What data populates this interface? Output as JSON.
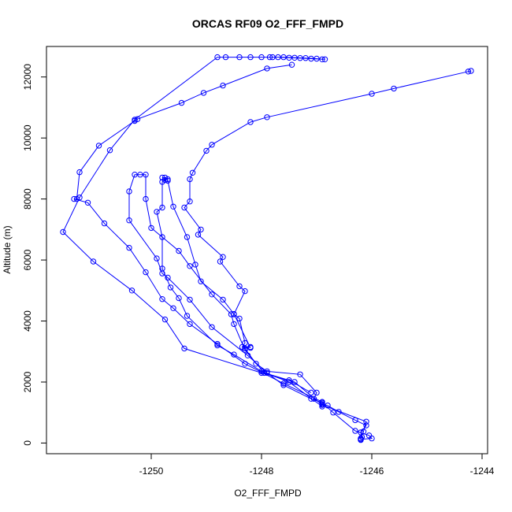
{
  "chart_data": {
    "type": "scatter",
    "title": "ORCAS RF09 O2_FFF_FMPD",
    "xlabel": "O2_FFF_FMPD",
    "ylabel": "Altitude (m)",
    "xlim": [
      -1251.9,
      -1243.9
    ],
    "ylim": [
      -350,
      13000
    ],
    "xticks": [
      -1250,
      -1248,
      -1246,
      -1244
    ],
    "yticks": [
      0,
      2000,
      4000,
      6000,
      8000,
      10000,
      12000
    ],
    "grid": false,
    "marker": "open-circle",
    "connected": true,
    "series_color": "#0000ff",
    "series": [
      {
        "points": [
          [
            -1244.2,
            12200
          ],
          [
            -1244.25,
            12180
          ],
          [
            -1245.6,
            11620
          ],
          [
            -1246.0,
            11450
          ],
          [
            -1247.9,
            10680
          ],
          [
            -1248.2,
            10520
          ],
          [
            -1248.9,
            9780
          ],
          [
            -1249.0,
            9580
          ],
          [
            -1249.25,
            8860
          ],
          [
            -1249.3,
            8650
          ],
          [
            -1249.3,
            7920
          ],
          [
            -1249.4,
            7720
          ],
          [
            -1249.1,
            7000
          ],
          [
            -1249.15,
            6830
          ],
          [
            -1248.7,
            6100
          ],
          [
            -1248.75,
            5950
          ],
          [
            -1248.4,
            5140
          ],
          [
            -1248.3,
            4980
          ],
          [
            -1248.5,
            4220
          ],
          [
            -1248.4,
            4080
          ],
          [
            -1248.3,
            3280
          ],
          [
            -1248.35,
            3150
          ],
          [
            -1248.2,
            3150
          ],
          [
            -1248.3,
            3100
          ],
          [
            -1248.1,
            2600
          ],
          [
            -1247.9,
            2350
          ],
          [
            -1247.3,
            2250
          ],
          [
            -1247.0,
            1650
          ],
          [
            -1247.05,
            1450
          ],
          [
            -1246.9,
            1280
          ],
          [
            -1246.8,
            1230
          ],
          [
            -1246.6,
            1020
          ],
          [
            -1246.3,
            750
          ],
          [
            -1246.1,
            580
          ],
          [
            -1246.2,
            350
          ],
          [
            -1246.18,
            200
          ],
          [
            -1246.2,
            150
          ],
          [
            -1246.2,
            100
          ]
        ]
      },
      {
        "points": [
          [
            -1246.2,
            120
          ],
          [
            -1246.0,
            150
          ],
          [
            -1246.05,
            250
          ],
          [
            -1246.3,
            400
          ],
          [
            -1246.7,
            1000
          ],
          [
            -1246.9,
            1320
          ],
          [
            -1247.1,
            1450
          ],
          [
            -1247.6,
            1900
          ],
          [
            -1247.9,
            2300
          ],
          [
            -1248.25,
            2870
          ],
          [
            -1248.9,
            3800
          ],
          [
            -1249.3,
            4700
          ],
          [
            -1249.7,
            5420
          ],
          [
            -1249.8,
            5560
          ],
          [
            -1249.9,
            6050
          ],
          [
            -1250.4,
            7300
          ],
          [
            -1250.4,
            8250
          ],
          [
            -1250.3,
            8800
          ],
          [
            -1250.2,
            8800
          ],
          [
            -1250.1,
            8800
          ],
          [
            -1250.1,
            8000
          ],
          [
            -1250.0,
            7050
          ],
          [
            -1249.5,
            6300
          ],
          [
            -1249.3,
            5800
          ],
          [
            -1248.9,
            4870
          ],
          [
            -1248.55,
            4220
          ],
          [
            -1248.5,
            3900
          ],
          [
            -1248.3,
            3050
          ],
          [
            -1247.95,
            2300
          ],
          [
            -1247.5,
            2060
          ],
          [
            -1247.1,
            1650
          ]
        ]
      },
      {
        "points": [
          [
            -1246.9,
            1200
          ],
          [
            -1247.5,
            2000
          ],
          [
            -1248.0,
            2350
          ],
          [
            -1248.5,
            2900
          ],
          [
            -1248.8,
            3200
          ],
          [
            -1249.35,
            4170
          ],
          [
            -1249.5,
            4750
          ],
          [
            -1249.65,
            5100
          ],
          [
            -1249.8,
            5720
          ],
          [
            -1249.8,
            6750
          ],
          [
            -1249.9,
            7580
          ],
          [
            -1249.8,
            7720
          ],
          [
            -1249.8,
            8560
          ],
          [
            -1249.75,
            8620
          ],
          [
            -1249.75,
            8700
          ],
          [
            -1249.8,
            8700
          ],
          [
            -1249.7,
            8650
          ],
          [
            -1249.7,
            8600
          ],
          [
            -1249.6,
            7750
          ],
          [
            -1249.35,
            6750
          ],
          [
            -1249.2,
            5850
          ],
          [
            -1249.1,
            5300
          ],
          [
            -1248.7,
            4700
          ],
          [
            -1248.5,
            4230
          ],
          [
            -1248.2,
            3120
          ]
        ]
      },
      {
        "points": [
          [
            -1246.9,
            1350
          ],
          [
            -1247.6,
            1950
          ],
          [
            -1248.3,
            2600
          ],
          [
            -1248.8,
            3250
          ],
          [
            -1249.3,
            3900
          ],
          [
            -1249.6,
            4420
          ],
          [
            -1249.8,
            4720
          ],
          [
            -1250.1,
            5600
          ],
          [
            -1250.4,
            6400
          ],
          [
            -1250.85,
            7200
          ],
          [
            -1251.15,
            7880
          ],
          [
            -1251.4,
            8000
          ],
          [
            -1251.35,
            8000
          ],
          [
            -1251.3,
            8880
          ],
          [
            -1250.95,
            9750
          ],
          [
            -1250.3,
            10560
          ],
          [
            -1250.25,
            10620
          ],
          [
            -1249.45,
            11150
          ],
          [
            -1249.05,
            11480
          ],
          [
            -1248.7,
            11720
          ],
          [
            -1247.9,
            12280
          ],
          [
            -1247.45,
            12400
          ]
        ]
      },
      {
        "points": [
          [
            -1246.2,
            150
          ],
          [
            -1246.15,
            380
          ],
          [
            -1246.1,
            700
          ],
          [
            -1246.9,
            1250
          ],
          [
            -1247.4,
            2000
          ],
          [
            -1248.0,
            2300
          ],
          [
            -1249.4,
            3100
          ],
          [
            -1249.75,
            4050
          ],
          [
            -1250.35,
            5000
          ],
          [
            -1251.05,
            5950
          ],
          [
            -1251.6,
            6920
          ],
          [
            -1251.3,
            8050
          ],
          [
            -1250.75,
            9600
          ],
          [
            -1250.3,
            10600
          ],
          [
            -1248.8,
            12650
          ],
          [
            -1248.65,
            12650
          ],
          [
            -1248.4,
            12650
          ],
          [
            -1248.2,
            12650
          ],
          [
            -1248.0,
            12650
          ],
          [
            -1247.8,
            12650
          ],
          [
            -1247.6,
            12650
          ],
          [
            -1247.4,
            12630
          ],
          [
            -1247.2,
            12620
          ],
          [
            -1247.0,
            12600
          ],
          [
            -1246.9,
            12580
          ],
          [
            -1246.85,
            12580
          ],
          [
            -1247.1,
            12600
          ],
          [
            -1247.3,
            12620
          ],
          [
            -1247.5,
            12630
          ],
          [
            -1247.7,
            12650
          ],
          [
            -1247.85,
            12650
          ]
        ]
      }
    ]
  }
}
